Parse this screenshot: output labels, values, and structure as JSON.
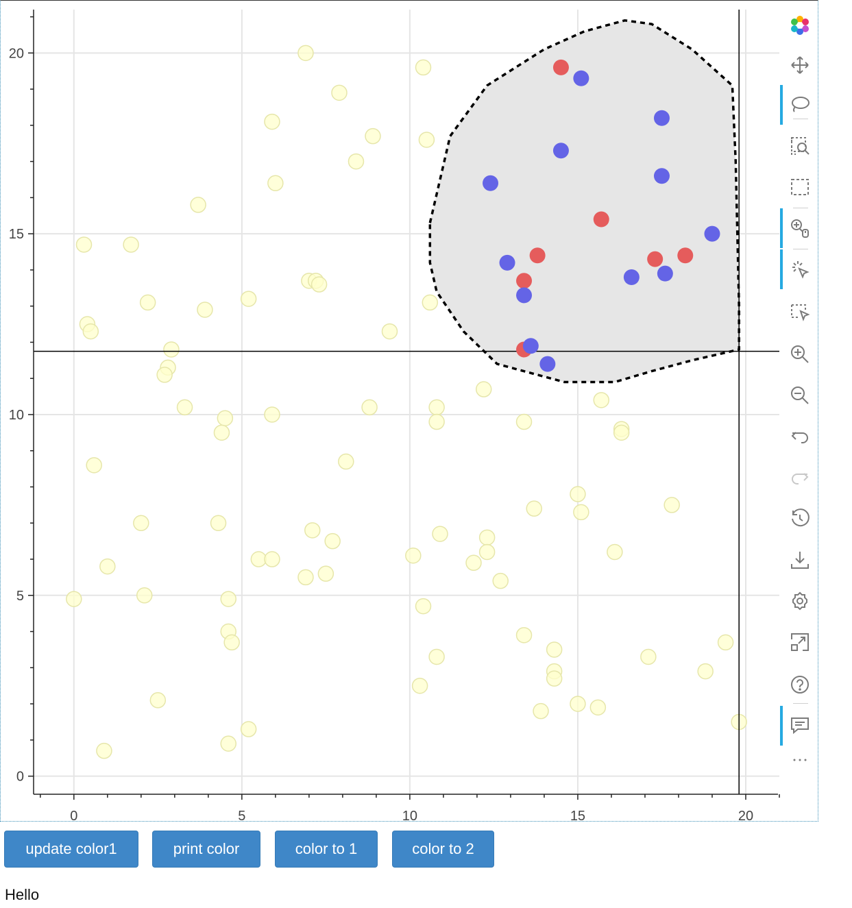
{
  "chart_data": {
    "type": "scatter",
    "xlim": [
      -1.2,
      21
    ],
    "ylim": [
      -0.5,
      21.2
    ],
    "xticks": [
      0,
      5,
      10,
      15,
      20
    ],
    "yticks": [
      0,
      5,
      10,
      15,
      20
    ],
    "xtick_labels": [
      "0",
      "5",
      "10",
      "15",
      "20"
    ],
    "ytick_labels": [
      "0",
      "5",
      "10",
      "15",
      "20"
    ],
    "grid": true,
    "crosshair": {
      "x": 19.8,
      "y": 11.75
    },
    "faded_points": [
      [
        6.9,
        20.0
      ],
      [
        10.4,
        19.6
      ],
      [
        7.9,
        18.9
      ],
      [
        5.9,
        18.1
      ],
      [
        8.9,
        17.7
      ],
      [
        10.5,
        17.6
      ],
      [
        8.4,
        17.0
      ],
      [
        6.0,
        16.4
      ],
      [
        3.7,
        15.8
      ],
      [
        0.3,
        14.7
      ],
      [
        1.7,
        14.7
      ],
      [
        7.0,
        13.7
      ],
      [
        7.2,
        13.7
      ],
      [
        7.3,
        13.6
      ],
      [
        2.2,
        13.1
      ],
      [
        5.2,
        13.2
      ],
      [
        10.6,
        13.1
      ],
      [
        3.9,
        12.9
      ],
      [
        0.4,
        12.5
      ],
      [
        0.5,
        12.3
      ],
      [
        9.4,
        12.3
      ],
      [
        2.9,
        11.8
      ],
      [
        2.8,
        11.3
      ],
      [
        2.7,
        11.1
      ],
      [
        12.2,
        10.7
      ],
      [
        15.7,
        10.4
      ],
      [
        3.3,
        10.2
      ],
      [
        8.8,
        10.2
      ],
      [
        10.8,
        10.2
      ],
      [
        4.5,
        9.9
      ],
      [
        5.9,
        10.0
      ],
      [
        10.8,
        9.8
      ],
      [
        13.4,
        9.8
      ],
      [
        4.4,
        9.5
      ],
      [
        16.3,
        9.6
      ],
      [
        16.3,
        9.5
      ],
      [
        0.6,
        8.6
      ],
      [
        8.1,
        8.7
      ],
      [
        15.0,
        7.8
      ],
      [
        15.1,
        7.3
      ],
      [
        13.7,
        7.4
      ],
      [
        17.8,
        7.5
      ],
      [
        2.0,
        7.0
      ],
      [
        4.3,
        7.0
      ],
      [
        7.1,
        6.8
      ],
      [
        10.9,
        6.7
      ],
      [
        7.7,
        6.5
      ],
      [
        12.3,
        6.6
      ],
      [
        12.3,
        6.2
      ],
      [
        16.1,
        6.2
      ],
      [
        5.5,
        6.0
      ],
      [
        5.9,
        6.0
      ],
      [
        10.1,
        6.1
      ],
      [
        11.9,
        5.9
      ],
      [
        1.0,
        5.8
      ],
      [
        7.5,
        5.6
      ],
      [
        6.9,
        5.5
      ],
      [
        12.7,
        5.4
      ],
      [
        0.0,
        4.9
      ],
      [
        2.1,
        5.0
      ],
      [
        4.6,
        4.9
      ],
      [
        10.4,
        4.7
      ],
      [
        4.6,
        4.0
      ],
      [
        4.7,
        3.7
      ],
      [
        13.4,
        3.9
      ],
      [
        14.3,
        3.5
      ],
      [
        19.4,
        3.7
      ],
      [
        10.8,
        3.3
      ],
      [
        17.1,
        3.3
      ],
      [
        14.3,
        2.9
      ],
      [
        18.8,
        2.9
      ],
      [
        14.3,
        2.7
      ],
      [
        10.3,
        2.5
      ],
      [
        2.5,
        2.1
      ],
      [
        15.0,
        2.0
      ],
      [
        15.6,
        1.9
      ],
      [
        13.9,
        1.8
      ],
      [
        19.8,
        1.5
      ],
      [
        5.2,
        1.3
      ],
      [
        4.6,
        0.9
      ],
      [
        0.9,
        0.7
      ]
    ],
    "red_points": [
      [
        14.5,
        19.6
      ],
      [
        15.7,
        15.4
      ],
      [
        13.8,
        14.4
      ],
      [
        17.3,
        14.3
      ],
      [
        18.2,
        14.4
      ],
      [
        13.4,
        13.7
      ],
      [
        13.4,
        11.8
      ]
    ],
    "blue_points": [
      [
        15.1,
        19.3
      ],
      [
        17.5,
        18.2
      ],
      [
        14.5,
        17.3
      ],
      [
        17.5,
        16.6
      ],
      [
        12.4,
        16.4
      ],
      [
        19.0,
        15.0
      ],
      [
        12.9,
        14.2
      ],
      [
        16.6,
        13.8
      ],
      [
        17.6,
        13.9
      ],
      [
        13.4,
        13.3
      ],
      [
        13.6,
        11.9
      ],
      [
        14.1,
        11.4
      ]
    ],
    "lasso": [
      [
        10.6,
        15.3
      ],
      [
        11.2,
        17.7
      ],
      [
        12.3,
        19.1
      ],
      [
        14.0,
        20.1
      ],
      [
        15.2,
        20.6
      ],
      [
        16.4,
        20.9
      ],
      [
        17.2,
        20.8
      ],
      [
        18.4,
        20.1
      ],
      [
        19.6,
        19.1
      ],
      [
        19.7,
        17.0
      ],
      [
        19.8,
        13.0
      ],
      [
        19.8,
        11.8
      ],
      [
        18.4,
        11.5
      ],
      [
        17.2,
        11.2
      ],
      [
        16.1,
        10.9
      ],
      [
        14.6,
        10.9
      ],
      [
        12.6,
        11.4
      ],
      [
        11.6,
        12.3
      ],
      [
        10.8,
        13.4
      ],
      [
        10.6,
        14.2
      ],
      [
        10.6,
        15.3
      ]
    ],
    "colors": {
      "faded": "#ffffcc",
      "faded_stroke": "#e6e6aa",
      "red": "#e55c5c",
      "blue": "#6464e6",
      "lasso_fill": "#e6e6e6",
      "grid": "#e5e5e5",
      "axis": "#222222"
    }
  },
  "toolbar": {
    "tools": [
      {
        "name": "bokeh-logo-icon",
        "active": false
      },
      {
        "name": "pan-icon",
        "active": false
      },
      {
        "name": "lasso-select-icon",
        "active": true
      },
      {
        "name": "box-zoom-icon",
        "active": false
      },
      {
        "name": "box-select-icon",
        "active": false
      },
      {
        "name": "wheel-zoom-icon",
        "active": true
      },
      {
        "name": "tap-icon",
        "active": true
      },
      {
        "name": "poly-select-icon",
        "active": false
      },
      {
        "name": "zoom-in-icon",
        "active": false
      },
      {
        "name": "zoom-out-icon",
        "active": false
      },
      {
        "name": "undo-icon",
        "active": false
      },
      {
        "name": "redo-icon",
        "active": false
      },
      {
        "name": "reset-icon",
        "active": false
      },
      {
        "name": "save-icon",
        "active": false
      },
      {
        "name": "settings-icon",
        "active": false
      },
      {
        "name": "fullscreen-icon",
        "active": false
      },
      {
        "name": "help-icon",
        "active": false
      },
      {
        "name": "hover-icon",
        "active": true
      },
      {
        "name": "more-icon",
        "active": false
      }
    ]
  },
  "buttons": {
    "update_color1": "update color1",
    "print_color": "print color",
    "color_to_1": "color to 1",
    "color_to_2": "color to 2"
  },
  "status_text": "Hello"
}
